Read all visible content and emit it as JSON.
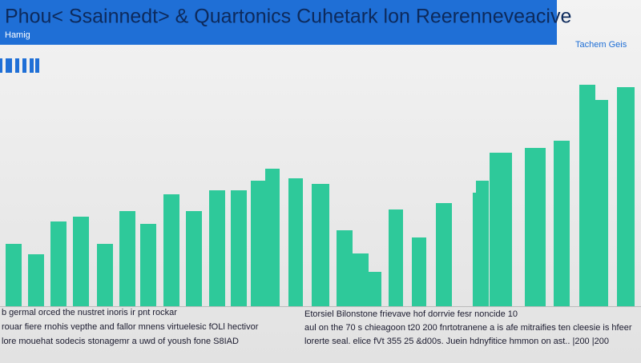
{
  "chart_data": {
    "type": "bar",
    "title": "Phou< Ssainnedt> & Quartonics Cuhetark lon Reerenneveacive",
    "subtitle": "Hamig",
    "corner_label": "Tachem Geis",
    "color": "#2ec99a",
    "values": [
      78,
      65,
      106,
      112,
      78,
      119,
      103,
      140,
      119,
      145,
      145,
      157,
      172,
      160,
      153,
      95,
      66,
      43,
      121,
      86,
      129,
      142,
      157,
      192,
      198,
      207,
      277,
      258,
      274
    ],
    "notes_left": [
      "b germal orced the nustret inoris ir pnt rockar",
      "rouar fiere rnohis vepthe and fallor mnens virtuelesic fOLl hectivor",
      "lore mouehat sodecis stonagemr a uwd of yoush fone S8IAD"
    ],
    "notes_right": [
      "Etorsiel Bilonstone frievave hof dorrvie fesr noncide 10",
      "aul on the 70 s chieagoon t20 200 fnrtotranene a is afe mitraifies ten cleesie is hfeer",
      "lorerte seal. elice fVt 355 25 &d00s. Juein hdnyfitice hmmon on ast.. |200 |200"
    ]
  }
}
